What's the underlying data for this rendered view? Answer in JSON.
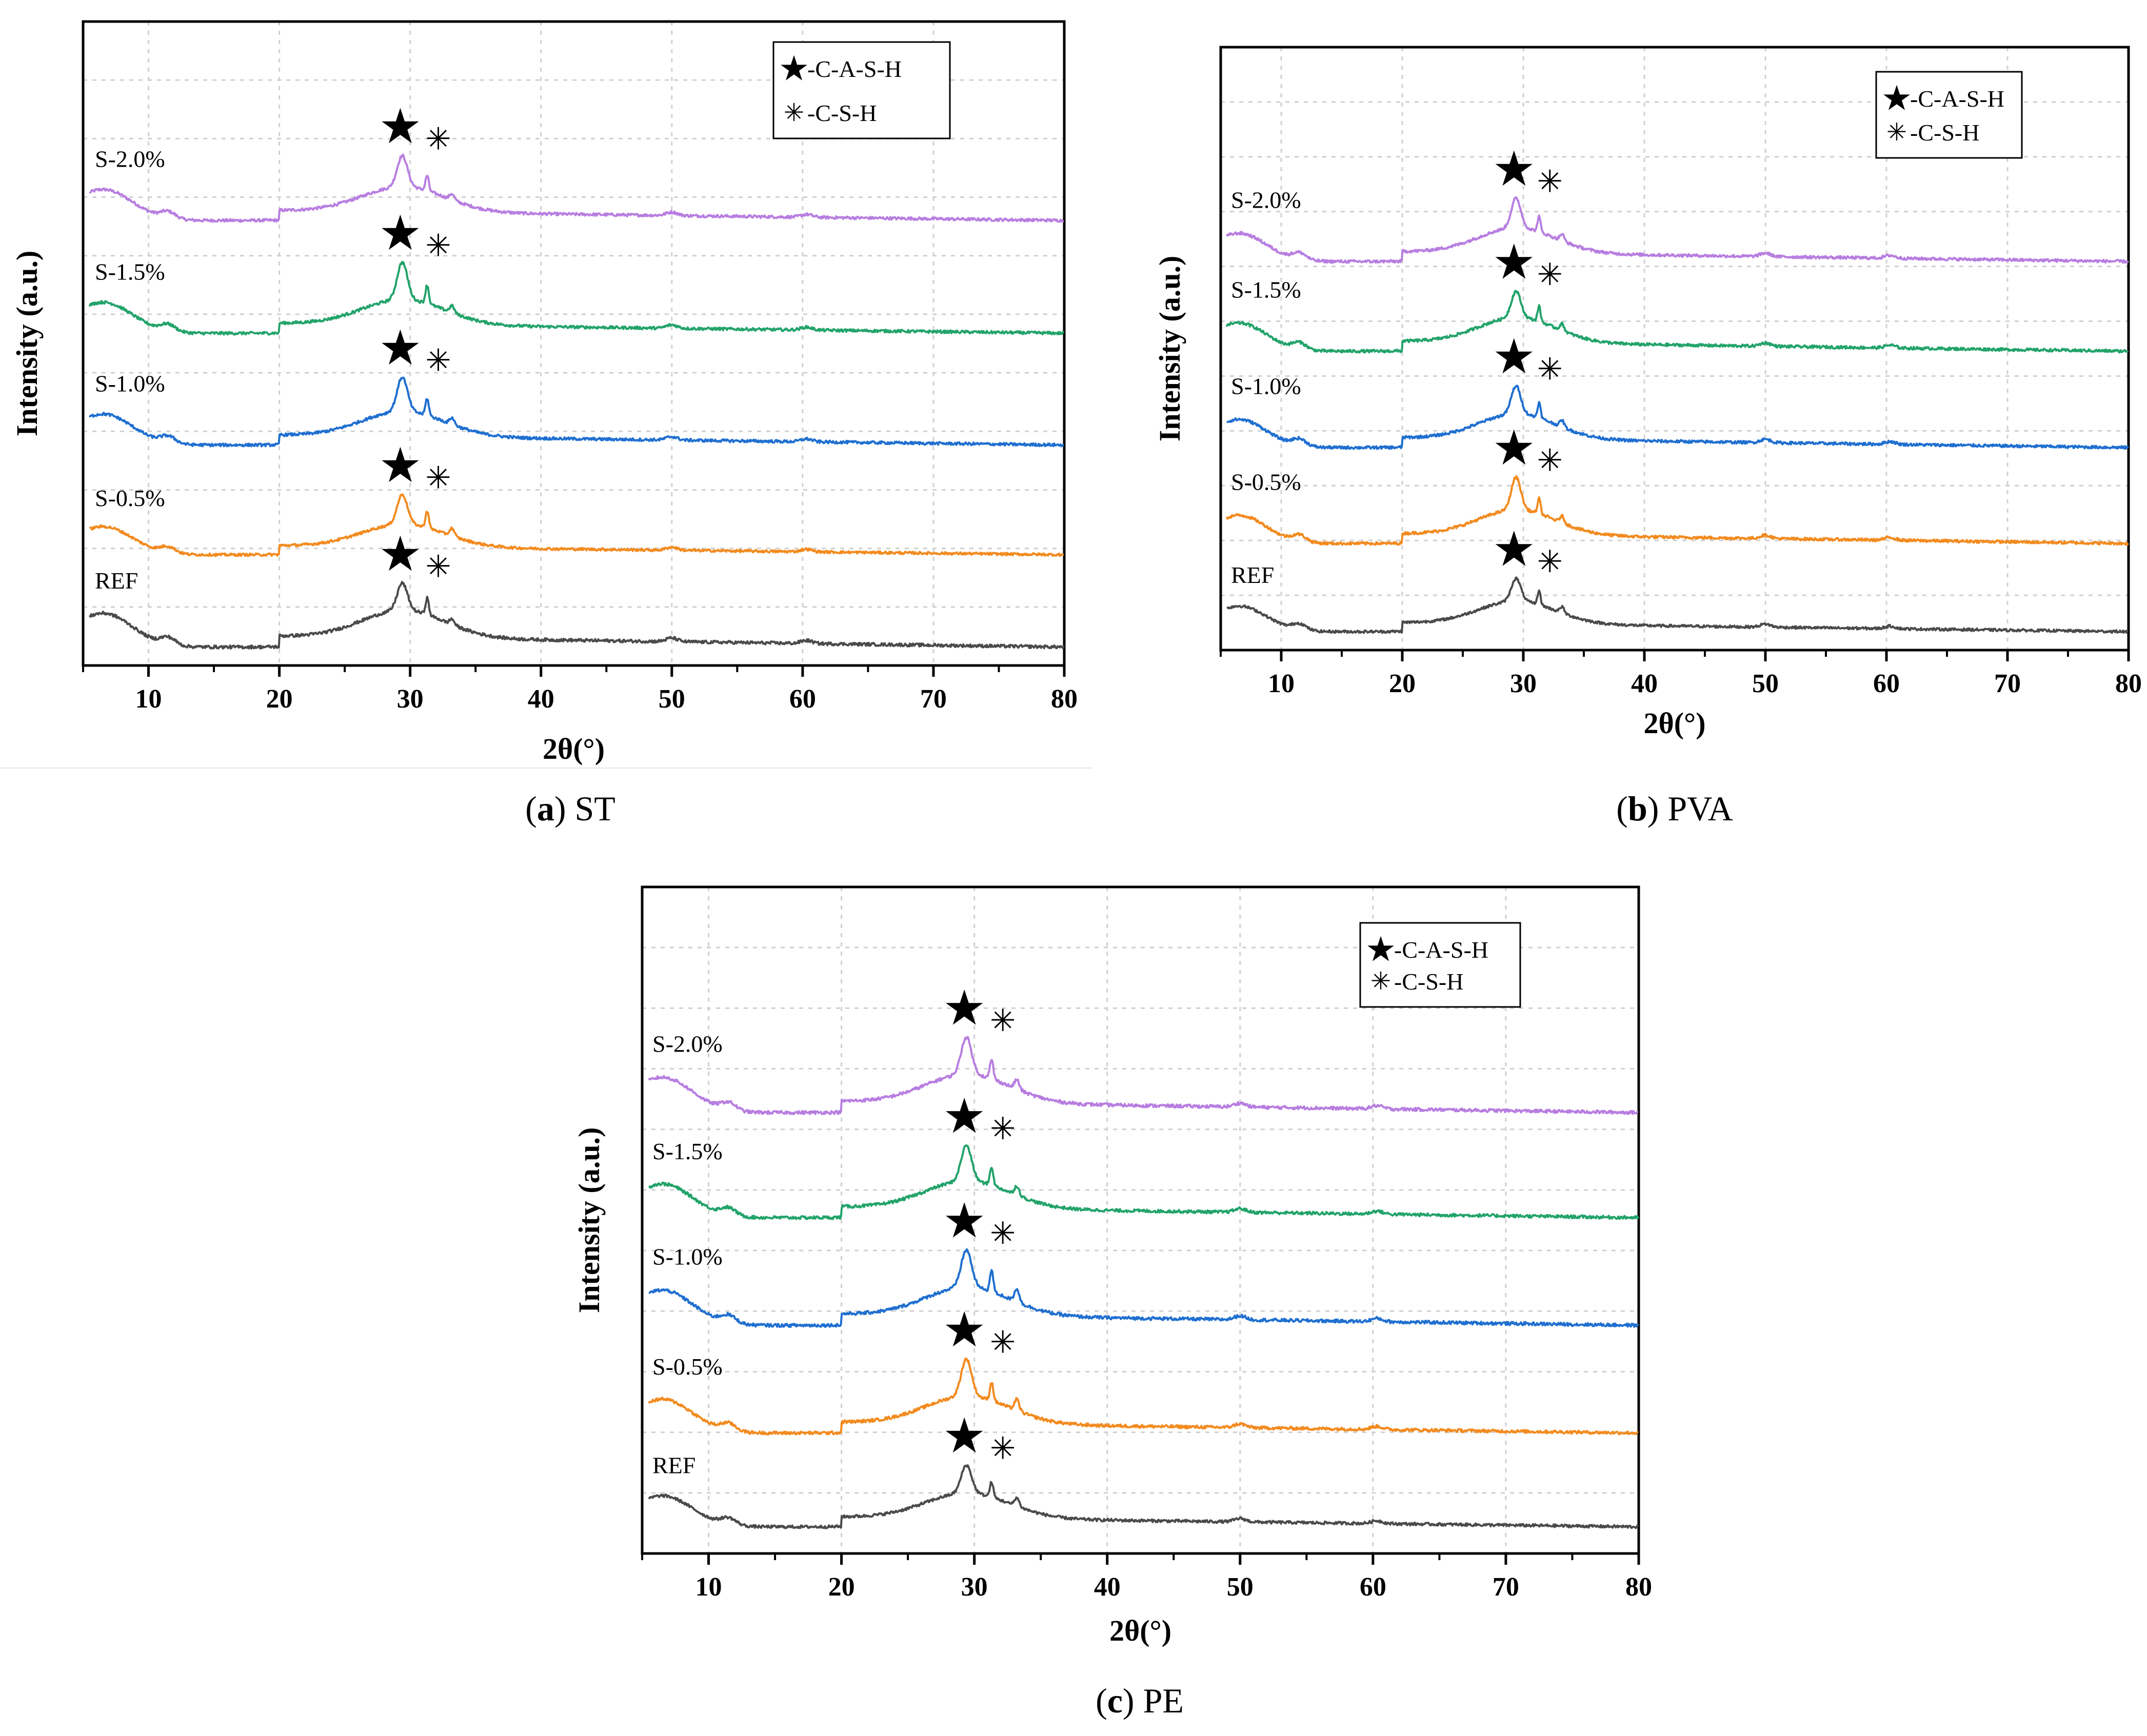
{
  "colors": {
    "S-2.0%": "#b77de0",
    "S-1.5%": "#22a36a",
    "S-1.0%": "#1f6fd0",
    "S-0.5%": "#f28a1e",
    "REF": "#4a4a4a"
  },
  "markers": {
    "star_symbol": "★",
    "asterisk_symbol": "✳"
  },
  "chart_data": [
    {
      "type": "line",
      "panel": "a",
      "title": "ST",
      "caption_letter": "a",
      "xlabel": "2θ(°)",
      "ylabel": "Intensity (a.u.)",
      "xlim": [
        5,
        80
      ],
      "x_ticks": [
        10,
        20,
        30,
        40,
        50,
        60,
        70,
        80
      ],
      "legend": [
        "-C-A-S-H",
        "-C-S-H"
      ],
      "legend_position": "top-right",
      "grid": true,
      "series": [
        {
          "name": "S-2.0%",
          "peak_29": 1.0,
          "peak_31": 0.45,
          "peak_33": 0.18,
          "hump_6": 0.55
        },
        {
          "name": "S-1.5%",
          "peak_29": 1.2,
          "peak_31": 0.55,
          "peak_33": 0.2,
          "hump_6": 0.55
        },
        {
          "name": "S-1.0%",
          "peak_29": 1.1,
          "peak_31": 0.5,
          "peak_33": 0.2,
          "hump_6": 0.55
        },
        {
          "name": "S-0.5%",
          "peak_29": 1.05,
          "peak_31": 0.55,
          "peak_33": 0.25,
          "hump_6": 0.55
        },
        {
          "name": "REF",
          "peak_29": 0.8,
          "peak_31": 0.45,
          "peak_33": 0.15,
          "hump_6": 0.55
        }
      ]
    },
    {
      "type": "line",
      "panel": "b",
      "title": "PVA",
      "caption_letter": "b",
      "xlabel": "2θ(°)",
      "ylabel": "Intensity (a.u.)",
      "xlim": [
        5,
        80
      ],
      "x_ticks": [
        10,
        20,
        30,
        40,
        50,
        60,
        70,
        80
      ],
      "legend": [
        "-C-A-S-H",
        "-C-S-H"
      ],
      "legend_position": "top-right",
      "grid": true,
      "series": [
        {
          "name": "S-2.0%",
          "peak_29": 0.95,
          "peak_31": 0.45,
          "peak_33": 0.2,
          "hump_6": 0.5
        },
        {
          "name": "S-1.5%",
          "peak_29": 0.85,
          "peak_31": 0.45,
          "peak_33": 0.2,
          "hump_6": 0.5
        },
        {
          "name": "S-1.0%",
          "peak_29": 0.9,
          "peak_31": 0.45,
          "peak_33": 0.2,
          "hump_6": 0.5
        },
        {
          "name": "S-0.5%",
          "peak_29": 1.05,
          "peak_31": 0.45,
          "peak_33": 0.2,
          "hump_6": 0.5
        },
        {
          "name": "REF",
          "peak_29": 0.8,
          "peak_31": 0.45,
          "peak_33": 0.2,
          "hump_6": 0.5
        }
      ]
    },
    {
      "type": "line",
      "panel": "c",
      "title": "PE",
      "caption_letter": "c",
      "xlabel": "2θ(°)",
      "ylabel": "Intensity (a.u.)",
      "xlim": [
        5,
        80
      ],
      "x_ticks": [
        10,
        20,
        30,
        40,
        50,
        60,
        70,
        80
      ],
      "legend": [
        "-C-A-S-H",
        "-C-S-H"
      ],
      "legend_position": "top-right",
      "grid": true,
      "series": [
        {
          "name": "S-2.0%",
          "peak_29": 1.05,
          "peak_31": 0.5,
          "peak_33": 0.25,
          "hump_6": 0.55
        },
        {
          "name": "S-1.5%",
          "peak_29": 1.05,
          "peak_31": 0.5,
          "peak_33": 0.25,
          "hump_6": 0.55
        },
        {
          "name": "S-1.0%",
          "peak_29": 1.05,
          "peak_31": 0.55,
          "peak_33": 0.35,
          "hump_6": 0.55
        },
        {
          "name": "S-0.5%",
          "peak_29": 1.1,
          "peak_31": 0.5,
          "peak_33": 0.3,
          "hump_6": 0.55
        },
        {
          "name": "REF",
          "peak_29": 0.9,
          "peak_31": 0.45,
          "peak_33": 0.25,
          "hump_6": 0.55
        }
      ]
    }
  ]
}
